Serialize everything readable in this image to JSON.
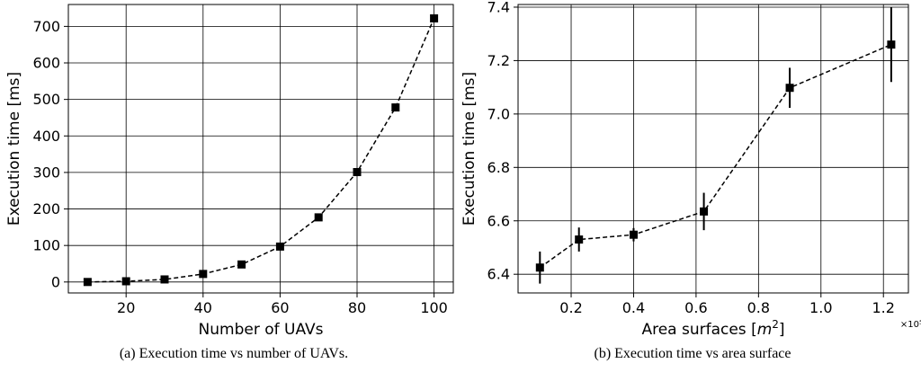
{
  "captions": {
    "a": "(a) Execution time vs number of UAVs.",
    "b": "(b) Execution time vs area surface"
  },
  "chart_data": [
    {
      "type": "line",
      "xlabel": "Number of UAVs",
      "ylabel": "Execution time [ms]",
      "xlim": [
        5,
        105
      ],
      "ylim": [
        -30,
        760
      ],
      "xticks": [
        20,
        40,
        60,
        80,
        100
      ],
      "yticks": [
        0,
        100,
        200,
        300,
        400,
        500,
        600,
        700
      ],
      "grid": true,
      "line_style": "dashed",
      "marker": "square",
      "color": "#000000",
      "series": [
        {
          "x": [
            10,
            20,
            30,
            40,
            50,
            60,
            70,
            80,
            90,
            100
          ],
          "y": [
            0,
            2,
            7,
            22,
            48,
            97,
            177,
            301,
            478,
            722
          ]
        }
      ]
    },
    {
      "type": "line",
      "xlabel": "Area surfaces [m²]",
      "ylabel": "Execution time [ms]",
      "x_scale_note": "×10⁵",
      "xlim": [
        0.03,
        1.28
      ],
      "ylim": [
        6.33,
        7.41
      ],
      "xticks": [
        0.2,
        0.4,
        0.6,
        0.8,
        1.0,
        1.2
      ],
      "xtick_labels": [
        "0.2",
        "0.4",
        "0.6",
        "0.8",
        "1.0",
        "1.2"
      ],
      "yticks": [
        6.4,
        6.6,
        6.8,
        7.0,
        7.2,
        7.4
      ],
      "ytick_labels": [
        "6.4",
        "6.6",
        "6.8",
        "7.0",
        "7.2",
        "7.4"
      ],
      "grid": true,
      "line_style": "dashed",
      "marker": "square",
      "color": "#000000",
      "series": [
        {
          "x": [
            0.1,
            0.225,
            0.4,
            0.625,
            0.9,
            1.225
          ],
          "y": [
            6.425,
            6.53,
            6.548,
            6.635,
            7.098,
            7.26
          ],
          "error": [
            0.06,
            0.045,
            0.025,
            0.07,
            0.075,
            0.14
          ]
        }
      ]
    }
  ]
}
